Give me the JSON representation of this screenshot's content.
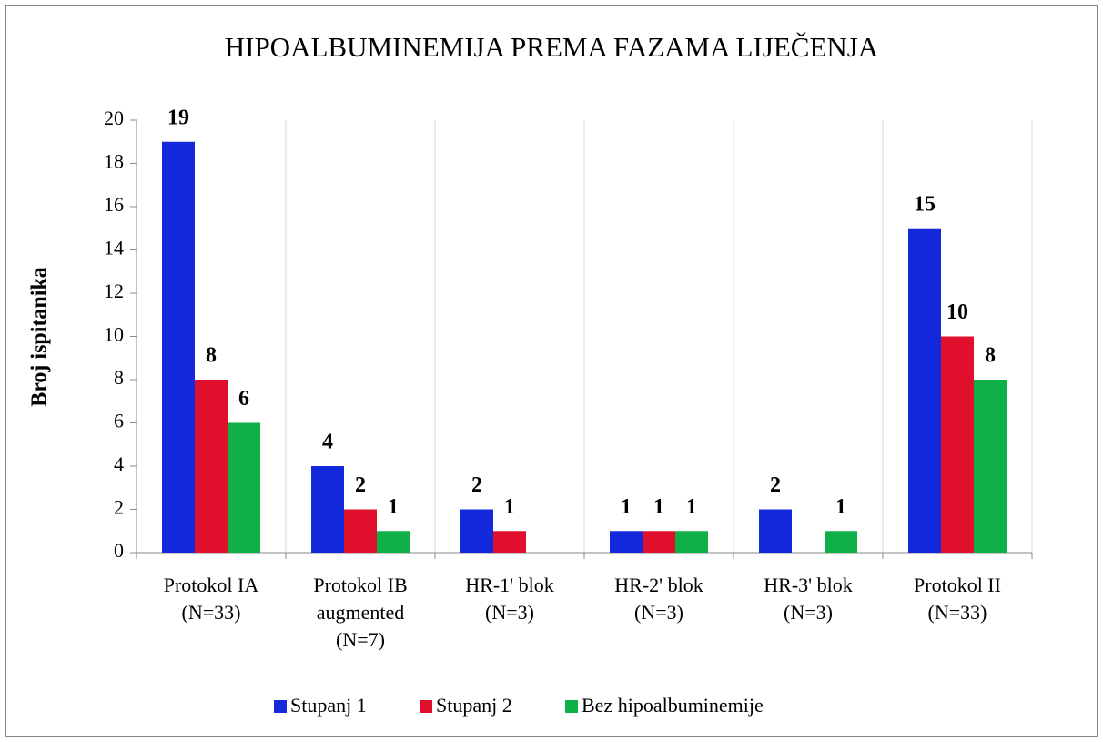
{
  "chart_data": {
    "type": "bar",
    "title": "HIPOALBUMINEMIJA PREMA FAZAMA LIJEČENJA",
    "y_label": "Broj ispitanika",
    "categories": [
      "Protokol IA\n(N=33)",
      "Protokol IB\naugmented\n(N=7)",
      "HR-1' blok\n(N=3)",
      "HR-2' blok\n(N=3)",
      "HR-3' blok\n(N=3)",
      "Protokol II\n(N=33)"
    ],
    "series": [
      {
        "name": "Stupanj 1",
        "color": "#1428dc",
        "values": [
          19,
          4,
          2,
          1,
          2,
          15
        ]
      },
      {
        "name": "Stupanj 2",
        "color": "#e0102c",
        "values": [
          8,
          2,
          1,
          1,
          null,
          10
        ]
      },
      {
        "name": "Bez hipoalbuminemije",
        "color": "#10b048",
        "values": [
          6,
          1,
          null,
          1,
          1,
          8
        ]
      }
    ],
    "ylim": [
      0,
      20
    ],
    "yticks": [
      0,
      2,
      4,
      6,
      8,
      10,
      12,
      14,
      16,
      18,
      20
    ],
    "legend": "bottom",
    "grid": "vertical"
  }
}
